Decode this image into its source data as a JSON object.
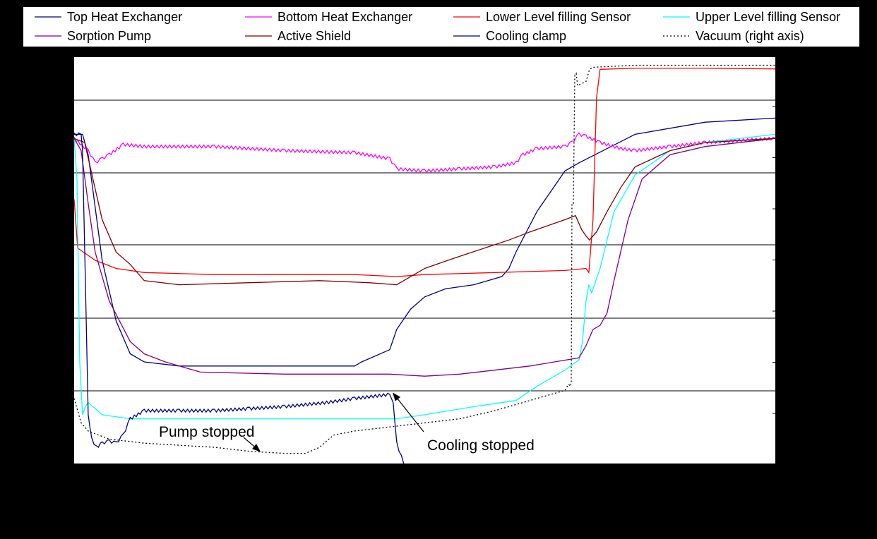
{
  "chart_data": {
    "type": "line",
    "background": "#000000",
    "plot_background": "#ffffff",
    "grid": "horizontal",
    "legend_position": "top",
    "legend_columns": 4,
    "x_range": [
      0,
      100
    ],
    "y_range": [
      0,
      100
    ],
    "y2_range": [
      0,
      100
    ],
    "series": [
      {
        "name": "Top Heat Exchanger",
        "color": "#000080",
        "dash": "solid",
        "points": [
          [
            0,
            81
          ],
          [
            1.2,
            81
          ],
          [
            2,
            76
          ],
          [
            4,
            50
          ],
          [
            6,
            35
          ],
          [
            8,
            27
          ],
          [
            10,
            25
          ],
          [
            15,
            24
          ],
          [
            25,
            24
          ],
          [
            40,
            24
          ],
          [
            41,
            25
          ],
          [
            45,
            28
          ],
          [
            46,
            33
          ],
          [
            48,
            38
          ],
          [
            50,
            41
          ],
          [
            53,
            43
          ],
          [
            57,
            44
          ],
          [
            61,
            46
          ],
          [
            62,
            48
          ],
          [
            63,
            52
          ],
          [
            66,
            62
          ],
          [
            70,
            72
          ],
          [
            72,
            74
          ],
          [
            80,
            81
          ],
          [
            90,
            84
          ],
          [
            100,
            85
          ]
        ]
      },
      {
        "name": "Bottom Heat Exchanger",
        "color": "#ff00ff",
        "dash": "solid",
        "wavy": true,
        "points": [
          [
            0,
            80
          ],
          [
            2,
            77
          ],
          [
            3,
            74
          ],
          [
            4,
            75
          ],
          [
            5,
            76
          ],
          [
            7,
            78.5
          ],
          [
            10,
            78
          ],
          [
            20,
            78
          ],
          [
            30,
            77
          ],
          [
            40,
            76.5
          ],
          [
            45,
            75
          ],
          [
            46,
            72.5
          ],
          [
            50,
            72
          ],
          [
            55,
            72.5
          ],
          [
            60,
            73
          ],
          [
            63,
            74
          ],
          [
            64,
            76
          ],
          [
            66,
            77.5
          ],
          [
            70,
            78
          ],
          [
            71,
            79
          ],
          [
            72,
            81
          ],
          [
            73,
            80.5
          ],
          [
            75,
            79
          ],
          [
            78,
            77.5
          ],
          [
            80,
            77
          ],
          [
            85,
            78
          ],
          [
            90,
            79
          ],
          [
            100,
            80
          ]
        ]
      },
      {
        "name": "Lower Level filling Sensor",
        "color": "#ff0000",
        "dash": "solid",
        "points": [
          [
            0,
            65
          ],
          [
            0.5,
            53
          ],
          [
            3,
            50
          ],
          [
            6,
            48
          ],
          [
            10,
            47
          ],
          [
            20,
            46.5
          ],
          [
            30,
            46.5
          ],
          [
            40,
            46.5
          ],
          [
            46,
            46
          ],
          [
            50,
            46.5
          ],
          [
            60,
            47
          ],
          [
            70,
            47.5
          ],
          [
            73,
            48
          ],
          [
            73.4,
            47
          ],
          [
            74,
            60
          ],
          [
            74.5,
            90
          ],
          [
            75,
            97
          ],
          [
            80,
            97.3
          ],
          [
            90,
            97.3
          ],
          [
            100,
            97.1
          ]
        ]
      },
      {
        "name": "Upper Level filling Sensor",
        "color": "#00ffff",
        "dash": "solid",
        "points": [
          [
            0,
            80
          ],
          [
            0.4,
            70
          ],
          [
            0.8,
            25
          ],
          [
            1.2,
            12
          ],
          [
            1.6,
            14
          ],
          [
            2,
            15
          ],
          [
            4,
            12
          ],
          [
            8,
            11
          ],
          [
            20,
            11
          ],
          [
            40,
            11
          ],
          [
            46,
            11
          ],
          [
            50,
            12
          ],
          [
            57,
            14
          ],
          [
            63,
            15.5
          ],
          [
            66,
            19
          ],
          [
            70,
            23
          ],
          [
            72,
            25.5
          ],
          [
            72.5,
            30
          ],
          [
            73,
            40
          ],
          [
            73.4,
            44
          ],
          [
            73.8,
            42
          ],
          [
            75,
            48
          ],
          [
            77,
            62
          ],
          [
            80,
            71
          ],
          [
            85,
            77
          ],
          [
            90,
            79
          ],
          [
            100,
            81
          ]
        ]
      },
      {
        "name": "Sorption Pump",
        "color": "#800080",
        "dash": "solid",
        "points": [
          [
            0,
            80
          ],
          [
            1,
            77
          ],
          [
            2,
            64
          ],
          [
            3,
            52
          ],
          [
            5,
            40
          ],
          [
            8,
            30
          ],
          [
            10,
            27
          ],
          [
            13,
            25
          ],
          [
            18,
            22.5
          ],
          [
            30,
            22
          ],
          [
            45,
            22
          ],
          [
            50,
            21.5
          ],
          [
            55,
            22
          ],
          [
            65,
            24
          ],
          [
            72,
            26
          ],
          [
            73,
            29
          ],
          [
            74,
            33
          ],
          [
            75,
            34
          ],
          [
            76,
            37
          ],
          [
            77,
            45
          ],
          [
            79,
            60
          ],
          [
            81,
            70
          ],
          [
            85,
            76
          ],
          [
            90,
            78
          ],
          [
            100,
            80
          ]
        ]
      },
      {
        "name": "Active Shield",
        "color": "#800000",
        "dash": "solid",
        "points": [
          [
            0,
            80
          ],
          [
            1.5,
            79
          ],
          [
            4,
            60
          ],
          [
            6,
            52
          ],
          [
            8,
            49
          ],
          [
            10,
            45
          ],
          [
            15,
            44
          ],
          [
            25,
            44.5
          ],
          [
            35,
            45
          ],
          [
            42,
            44.5
          ],
          [
            46,
            44
          ],
          [
            50,
            48
          ],
          [
            55,
            51
          ],
          [
            62,
            55
          ],
          [
            65,
            57
          ],
          [
            70,
            60
          ],
          [
            71.5,
            61
          ],
          [
            72.4,
            57.5
          ],
          [
            73,
            56
          ],
          [
            73.5,
            55
          ],
          [
            74.5,
            57
          ],
          [
            76,
            62
          ],
          [
            78,
            68
          ],
          [
            80,
            73
          ],
          [
            85,
            77
          ],
          [
            90,
            79
          ],
          [
            100,
            80
          ]
        ]
      },
      {
        "name": "Cooling clamp",
        "color": "#000080",
        "dash": "solid",
        "wavy": true,
        "points": [
          [
            0,
            81
          ],
          [
            1,
            81
          ],
          [
            1.2,
            77
          ],
          [
            1.6,
            45
          ],
          [
            2,
            12
          ],
          [
            2.5,
            6
          ],
          [
            3.2,
            4
          ],
          [
            4,
            5
          ],
          [
            5,
            5.5
          ],
          [
            6,
            5
          ],
          [
            7,
            7
          ],
          [
            8,
            11
          ],
          [
            10,
            13
          ],
          [
            15,
            13
          ],
          [
            20,
            13
          ],
          [
            25,
            13.5
          ],
          [
            30,
            14
          ],
          [
            36,
            15
          ],
          [
            40,
            16
          ],
          [
            45,
            17
          ],
          [
            45.5,
            15
          ],
          [
            46,
            5
          ],
          [
            47,
            0
          ]
        ]
      },
      {
        "name": "Vacuum (right axis)",
        "color": "#000000",
        "dash": "dotted",
        "points": [
          [
            0,
            16
          ],
          [
            1,
            10
          ],
          [
            2,
            8
          ],
          [
            5,
            6
          ],
          [
            10,
            5
          ],
          [
            15,
            4.5
          ],
          [
            20,
            4
          ],
          [
            25,
            3
          ],
          [
            30,
            2.5
          ],
          [
            33,
            2.5
          ],
          [
            35,
            4
          ],
          [
            37,
            7
          ],
          [
            40,
            8
          ],
          [
            50,
            10
          ],
          [
            55,
            11
          ],
          [
            60,
            13
          ],
          [
            66,
            16
          ],
          [
            70,
            18
          ],
          [
            70.5,
            19.5
          ],
          [
            70.8,
            19
          ],
          [
            70.9,
            20
          ],
          [
            71,
            64
          ],
          [
            71.2,
            64
          ],
          [
            71.4,
            95.5
          ],
          [
            71.6,
            96
          ],
          [
            71.8,
            93
          ],
          [
            73,
            94
          ],
          [
            73.5,
            97
          ],
          [
            74,
            97.5
          ],
          [
            80,
            98
          ],
          [
            100,
            98
          ]
        ]
      }
    ],
    "annotations": [
      {
        "text": "Pump stopped",
        "x": 20,
        "y": 7.5,
        "arrow_to": [
          26.5,
          3
        ]
      },
      {
        "text": "Cooling stopped",
        "x": 50.5,
        "y": 4,
        "arrow_to": [
          45.5,
          17.3
        ]
      }
    ]
  }
}
